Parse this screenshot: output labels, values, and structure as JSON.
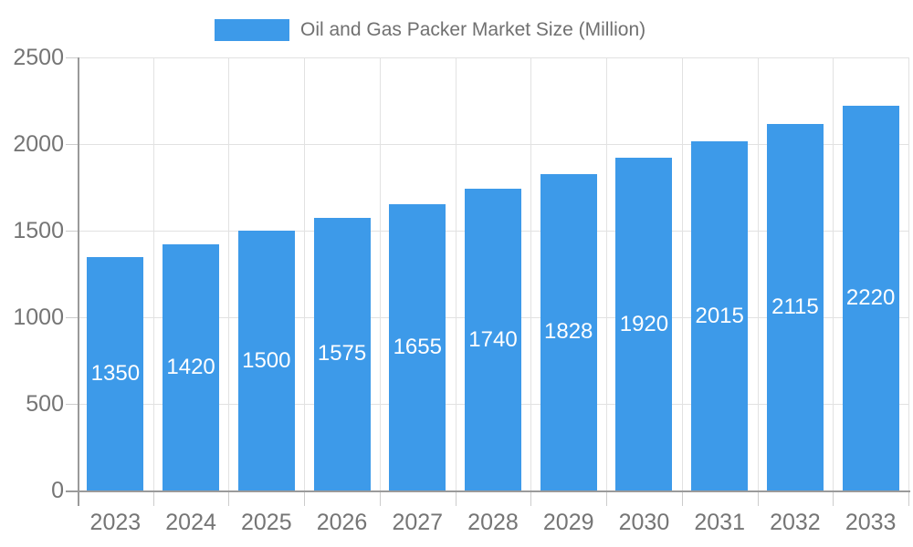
{
  "chart_data": {
    "type": "bar",
    "title": "Oil and Gas Packer Market Size (Million)",
    "categories": [
      "2023",
      "2024",
      "2025",
      "2026",
      "2027",
      "2028",
      "2029",
      "2030",
      "2031",
      "2032",
      "2033"
    ],
    "series": [
      {
        "name": "Oil and Gas Packer Market Size (Million)",
        "values": [
          1350,
          1420,
          1500,
          1575,
          1655,
          1740,
          1828,
          1920,
          2015,
          2115,
          2220
        ]
      }
    ],
    "value_labels": "inside-center",
    "xlabel": "",
    "ylabel": "",
    "ylim": [
      0,
      2500
    ],
    "yticks": [
      0,
      500,
      1000,
      1500,
      2000,
      2500
    ],
    "grid": true,
    "legend_position": "top-center",
    "colors": {
      "bar": "#3D9AE9",
      "value_label": "#FFFFFF",
      "axis_text": "#757575",
      "legend_text": "#707070",
      "gridline": "#E2E2E2",
      "tick": "#CCCCCC",
      "axis_line": "#9A9A9A",
      "background": "#FFFFFF"
    }
  }
}
